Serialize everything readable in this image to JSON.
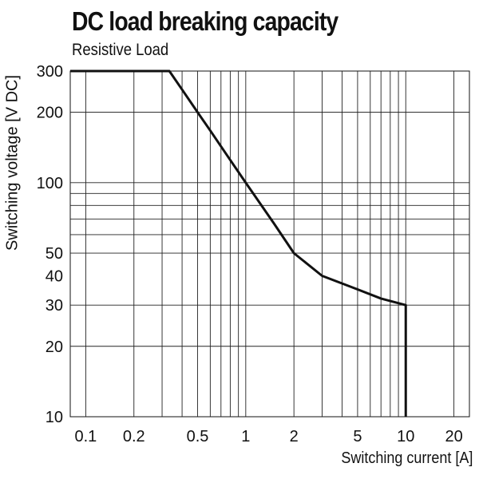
{
  "chart_data": {
    "type": "line",
    "title": "DC load breaking capacity",
    "subtitle": "Resistive Load",
    "xlabel": "Switching current [A]",
    "ylabel": "Switching voltage [V DC]",
    "x_scale": "log",
    "y_scale": "log",
    "xlim": [
      0.08,
      25
    ],
    "ylim": [
      10,
      300
    ],
    "grid": true,
    "x_ticks": [
      {
        "value": 0.1,
        "label": "0.1"
      },
      {
        "value": 0.2,
        "label": "0.2"
      },
      {
        "value": 0.5,
        "label": "0.5"
      },
      {
        "value": 1,
        "label": "1"
      },
      {
        "value": 2,
        "label": "2"
      },
      {
        "value": 5,
        "label": "5"
      },
      {
        "value": 10,
        "label": "10"
      },
      {
        "value": 20,
        "label": "20"
      }
    ],
    "y_ticks": [
      {
        "value": 10,
        "label": "10"
      },
      {
        "value": 20,
        "label": "20"
      },
      {
        "value": 30,
        "label": "30"
      },
      {
        "value": 40,
        "label": "40"
      },
      {
        "value": 50,
        "label": "50"
      },
      {
        "value": 100,
        "label": "100"
      },
      {
        "value": 200,
        "label": "200"
      },
      {
        "value": 300,
        "label": "300"
      }
    ],
    "x_gridlines": [
      0.1,
      0.2,
      0.3,
      0.4,
      0.5,
      0.6,
      0.7,
      0.8,
      0.9,
      1,
      2,
      3,
      4,
      5,
      6,
      7,
      8,
      9,
      10,
      20
    ],
    "y_gridlines": [
      20,
      30,
      50,
      60,
      70,
      80,
      90,
      100,
      200
    ],
    "series": [
      {
        "color": "#111111",
        "points": [
          [
            0.08,
            300
          ],
          [
            0.333,
            300
          ],
          [
            0.4,
            250
          ],
          [
            0.5,
            200
          ],
          [
            0.6,
            167
          ],
          [
            0.8,
            125
          ],
          [
            1,
            100
          ],
          [
            1.5,
            67
          ],
          [
            2,
            50
          ],
          [
            3,
            40
          ],
          [
            5,
            35
          ],
          [
            7,
            32
          ],
          [
            10,
            30
          ],
          [
            10,
            10
          ]
        ]
      }
    ]
  }
}
